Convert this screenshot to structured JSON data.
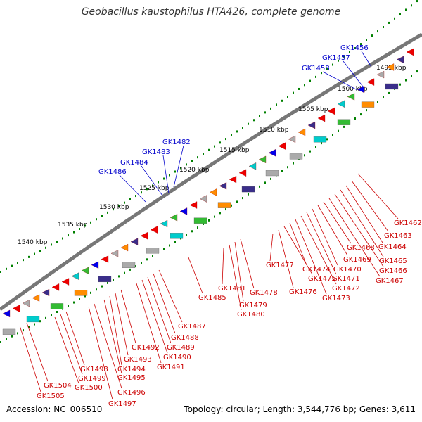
{
  "title": "Geobacillus kaustophilus HTA426, complete genome",
  "footer": {
    "accession": "Accession: NC_006510",
    "topology": "Topology: circular; Length: 3,544,776 bp; Genes: 3,611"
  },
  "colors": {
    "backbone": "#777777",
    "tick": "#008000",
    "label_top": "#0000cc",
    "label_bottom": "#cc0000",
    "gene_red": "#ee0000",
    "gene_blue": "#0000ee",
    "gene_navy": "#3a2e8a",
    "gene_green": "#33bb33",
    "gene_orange": "#ff8c00",
    "gene_cyan": "#00cccc",
    "gene_gray": "#aaaaaa",
    "gene_pink": "#ee1177"
  },
  "kbp_labels": [
    "1495 kbp",
    "1500 kbp",
    "1505 kbp",
    "1510 kbp",
    "1515 kbp",
    "1520 kbp",
    "1525 kbp",
    "1530 kbp",
    "1535 kbp",
    "1540 kbp"
  ],
  "top_genes": [
    "GK1456",
    "GK1457",
    "GK1458",
    "GK1482",
    "GK1483",
    "GK1484",
    "GK1486"
  ],
  "bottom_genes": [
    "GK1462",
    "GK1463",
    "GK1464",
    "GK1465",
    "GK1466",
    "GK1467",
    "GK1468",
    "GK1469",
    "GK1470",
    "GK1471",
    "GK1472",
    "GK1473",
    "GK1474",
    "GK1475",
    "GK1476",
    "GK1477",
    "GK1478",
    "GK1479",
    "GK1480",
    "GK1481",
    "GK1485",
    "GK1487",
    "GK1488",
    "GK1489",
    "GK1490",
    "GK1491",
    "GK1492",
    "GK1493",
    "GK1494",
    "GK1495",
    "GK1496",
    "GK1497",
    "GK1498",
    "GK1499",
    "GK1500",
    "GK1504",
    "GK1505"
  ]
}
